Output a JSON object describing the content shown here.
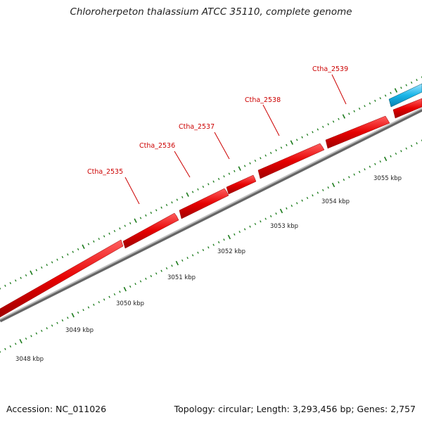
{
  "title": "Chloroherpeton thalassium ATCC 35110, complete genome",
  "footer": {
    "accession": "Accession: NC_011026",
    "summary": "Topology: circular; Length: 3,293,456 bp; Genes: 2,757"
  },
  "colors": {
    "forward_gene": "#e60000",
    "reverse_gene": "#19b5e8",
    "ticks": "#1a7a1a",
    "backbone": "#888888",
    "label": "#cc0000"
  },
  "gene_labels": [
    {
      "id": "Ctha_2535",
      "text": "Ctha_2535"
    },
    {
      "id": "Ctha_2536",
      "text": "Ctha_2536"
    },
    {
      "id": "Ctha_2537",
      "text": "Ctha_2537"
    },
    {
      "id": "Ctha_2538",
      "text": "Ctha_2538"
    },
    {
      "id": "Ctha_2539",
      "text": "Ctha_2539"
    }
  ],
  "kbp_labels": [
    "3048 kbp",
    "3049 kbp",
    "3050 kbp",
    "3051 kbp",
    "3052 kbp",
    "3053 kbp",
    "3054 kbp",
    "3055 kbp"
  ]
}
